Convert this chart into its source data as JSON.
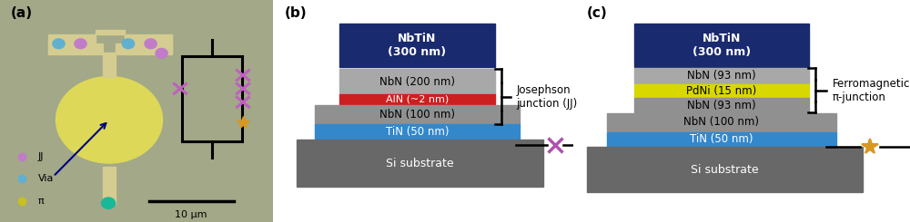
{
  "fig_width": 10.0,
  "fig_height": 2.45,
  "bg_color": "#ffffff",
  "panel_a": {
    "label": "(a)",
    "bg_color": "#a8aa88",
    "jj_label": "JJ",
    "via_label": "Via",
    "pi_label": "π",
    "scale_label": "10 μm",
    "jj_color": "#c07cc8",
    "via_color": "#60b0d0",
    "pi_color": "#c8c020",
    "circuit_x_color": "#c060c0",
    "circuit_star_color": "#d89820"
  },
  "panel_b": {
    "label": "(b)",
    "NbTiN_color": "#1a2a6e",
    "NbN_color": "#a8a8a8",
    "AlN_color": "#cc2020",
    "NbN2_color": "#909090",
    "TiN_color": "#3388cc",
    "Si_color": "#686868",
    "brace_label": "Josephson\njunction (JJ)",
    "jj_symbol_color": "#b050b0"
  },
  "panel_c": {
    "label": "(c)",
    "NbTiN_color": "#1a2a6e",
    "NbN_color": "#a8a8a8",
    "PdNi_color": "#d8d800",
    "NbN2_color": "#909090",
    "TiN_color": "#3388cc",
    "Si_color": "#686868",
    "brace_label": "Ferromagnetic\nπ-junction",
    "pi_symbol_color": "#d89820"
  }
}
